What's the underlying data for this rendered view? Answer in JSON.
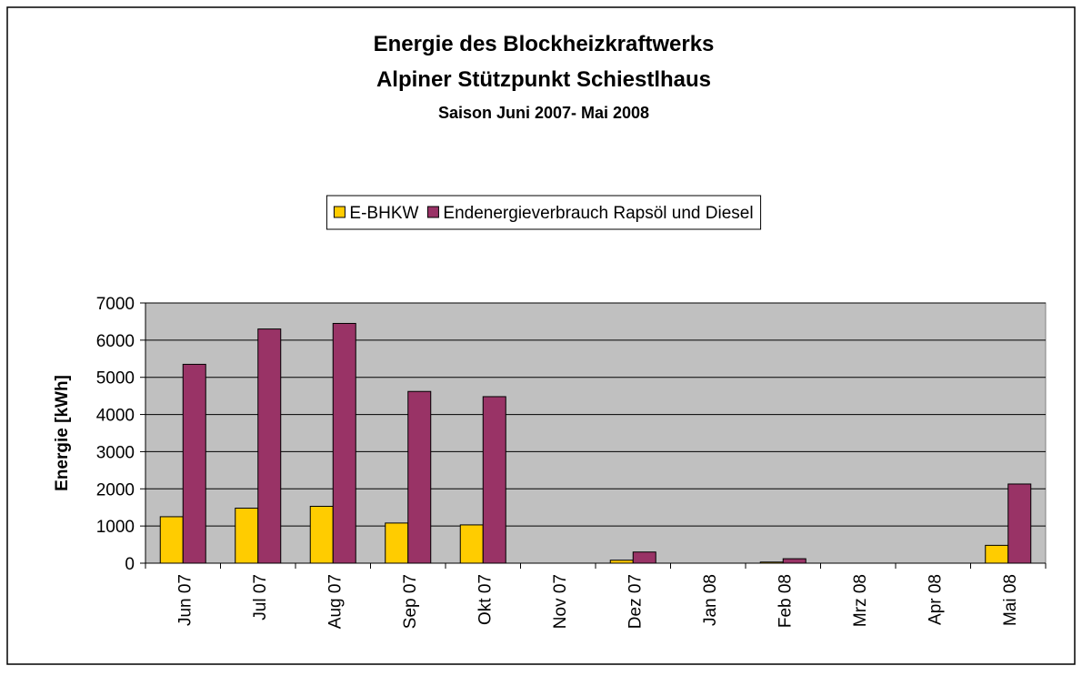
{
  "chart_data": {
    "type": "bar",
    "title": [
      "Energie des Blockheizkraftwerks",
      "Alpiner Stützpunkt Schiestlhaus"
    ],
    "subtitle": "Saison Juni 2007- Mai 2008",
    "y_label": "Energie [kWh]",
    "categories": [
      "Jun 07",
      "Jul 07",
      "Aug 07",
      "Sep 07",
      "Okt 07",
      "Nov 07",
      "Dez 07",
      "Jan 08",
      "Feb 08",
      "Mrz 08",
      "Apr 08",
      "Mai 08"
    ],
    "series": [
      {
        "name": "E-BHKW",
        "color": "#ffcc00",
        "values": [
          1250,
          1480,
          1530,
          1080,
          1030,
          0,
          80,
          0,
          30,
          0,
          0,
          480
        ]
      },
      {
        "name": "Endenergieverbrauch Rapsöl und Diesel",
        "color": "#993366",
        "values": [
          5350,
          6300,
          6450,
          4620,
          4480,
          0,
          300,
          0,
          120,
          0,
          0,
          2130
        ]
      }
    ],
    "ylim": [
      0,
      7000
    ],
    "yticks": [
      0,
      1000,
      2000,
      3000,
      4000,
      5000,
      6000,
      7000
    ],
    "grid": true,
    "legend": "top",
    "plot_background": "#c0c0c0"
  }
}
